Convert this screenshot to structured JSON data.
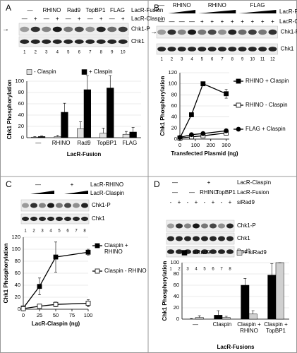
{
  "panels": [
    {
      "label": "A",
      "rows": [
        {
          "name": "LacR-Fusion",
          "labels": [
            "—",
            "RHINO",
            "Rad9",
            "TopBP1",
            "FLAG"
          ]
        },
        {
          "name": "LacR-Claspin",
          "labels": [
            "—",
            "+",
            "—",
            "+",
            "—",
            "+",
            "—",
            "+",
            "—",
            "+"
          ]
        }
      ],
      "bands": [
        "Chk1-P",
        "Chk1"
      ],
      "lanes": [
        1,
        2,
        3,
        4,
        5,
        6,
        7,
        8,
        9,
        10
      ]
    },
    {
      "label": "B",
      "rows": [
        {
          "name": "LacR-Fusion",
          "labels": [
            "—",
            "RHINO",
            "RHINO",
            "FLAG"
          ]
        },
        {
          "name": "LacR-Claspin",
          "labels": [
            "—",
            "—",
            "—",
            "—",
            "+",
            "+",
            "+",
            "+",
            "+",
            "+",
            "+",
            "+"
          ]
        }
      ],
      "bands": [
        "Chk1-P",
        "Chk1"
      ],
      "lanes": [
        1,
        2,
        3,
        4,
        5,
        6,
        7,
        8,
        9,
        10,
        11,
        12
      ]
    },
    {
      "label": "C",
      "rows": [
        {
          "name": "LacR-RHINO",
          "labels": [
            "—",
            "+"
          ]
        },
        {
          "name": "LacR-Claspin"
        }
      ],
      "bands": [
        "Chk1-P",
        "Chk1"
      ],
      "lanes": [
        1,
        2,
        3,
        4,
        5,
        6,
        7,
        8
      ]
    },
    {
      "label": "D",
      "rows": [
        {
          "name": "LacR-Claspin",
          "labels": [
            "—",
            "+"
          ]
        },
        {
          "name": "LacR-Fusion",
          "labels": [
            "—",
            "—",
            "RHINO",
            "TopBP1"
          ]
        },
        {
          "name": "siRad9",
          "labels": [
            "-",
            "+",
            "-",
            "+",
            "-",
            "+",
            "-",
            "+"
          ]
        }
      ],
      "bands": [
        "Chk1-P",
        "Chk1",
        "Rad9"
      ],
      "lanes": [
        1,
        2,
        3,
        4,
        5,
        6,
        7,
        8
      ]
    }
  ],
  "chart_data": [
    {
      "type": "bar",
      "xlabel": "LacR-Fusion",
      "ylabel": "Chk1 Phosphorylation",
      "categories": [
        "—",
        "RHINO",
        "Rad9",
        "TopBP1",
        "FLAG"
      ],
      "series": [
        {
          "name": "- Claspin",
          "color": "#e0e0e0",
          "values": [
            1,
            2,
            16,
            8,
            6
          ],
          "errors": [
            1,
            2,
            12,
            9,
            5
          ]
        },
        {
          "name": "+ Claspin",
          "color": "#000000",
          "values": [
            2,
            45,
            85,
            88,
            10
          ],
          "errors": [
            1,
            16,
            25,
            22,
            8
          ]
        }
      ],
      "ylim": [
        0,
        100
      ],
      "yticks": [
        0,
        20,
        40,
        60,
        80,
        100
      ],
      "grid": true,
      "legend": "top"
    },
    {
      "type": "line",
      "xlabel": "Transfected Plasmid (ng)",
      "ylabel": "Chk1 Phosphorylation",
      "x": [
        0,
        75,
        150,
        300
      ],
      "series": [
        {
          "name": "RHINO + Claspin",
          "color": "#000000",
          "marker": "square",
          "values": [
            2,
            44,
            100,
            82
          ],
          "errors": [
            1,
            3,
            2,
            8
          ]
        },
        {
          "name": "RHINO - Claspin",
          "color": "#ffffff",
          "marker": "square",
          "values": [
            2,
            4,
            6,
            11
          ],
          "errors": [
            1,
            1,
            2,
            3
          ]
        },
        {
          "name": "FLAG + Claspin",
          "color": "#000000",
          "marker": "circle",
          "values": [
            3,
            8,
            10,
            15
          ],
          "errors": [
            1,
            2,
            2,
            3
          ]
        }
      ],
      "xlim": [
        0,
        320
      ],
      "xticks": [
        0,
        100,
        200,
        300
      ],
      "ylim": [
        0,
        120
      ],
      "yticks": [
        0,
        20,
        40,
        60,
        80,
        100,
        120
      ],
      "grid": true,
      "legend": "right"
    },
    {
      "type": "line",
      "xlabel": "LacR-Claspin (ng)",
      "ylabel": "Chk1 Phosphorylation",
      "x": [
        0,
        25,
        50,
        100
      ],
      "series": [
        {
          "name": "Claspin + RHINO",
          "color": "#000000",
          "marker": "square",
          "values": [
            2,
            38,
            87,
            95
          ],
          "errors": [
            1,
            14,
            25,
            5
          ]
        },
        {
          "name": "Claspin - RHINO",
          "color": "#ffffff",
          "marker": "square",
          "values": [
            1,
            5,
            8,
            10
          ],
          "errors": [
            1,
            2,
            4,
            6
          ]
        }
      ],
      "xlim": [
        0,
        100
      ],
      "xticks": [
        0,
        25,
        50,
        75,
        100
      ],
      "ylim": [
        0,
        120
      ],
      "yticks": [
        0,
        20,
        40,
        60,
        80,
        100,
        120
      ],
      "grid": true,
      "legend": "right"
    },
    {
      "type": "bar",
      "xlabel": "LacR-Fusions",
      "ylabel": "Chk1 Phosphorylation",
      "categories": [
        "—",
        "Claspin",
        "Claspin + RHINO",
        "Claspin + TopBP1"
      ],
      "series": [
        {
          "name": "- siRad9",
          "color": "#000000",
          "values": [
            0,
            7,
            60,
            78
          ],
          "errors": [
            1,
            8,
            12,
            20
          ]
        },
        {
          "name": "+ siRad9",
          "color": "#d0d0d0",
          "values": [
            3,
            3,
            9,
            100
          ],
          "errors": [
            3,
            2,
            6,
            0
          ]
        }
      ],
      "ylim": [
        0,
        100
      ],
      "yticks": [
        0,
        20,
        40,
        60,
        80,
        100
      ],
      "grid": true,
      "legend": "top"
    }
  ]
}
